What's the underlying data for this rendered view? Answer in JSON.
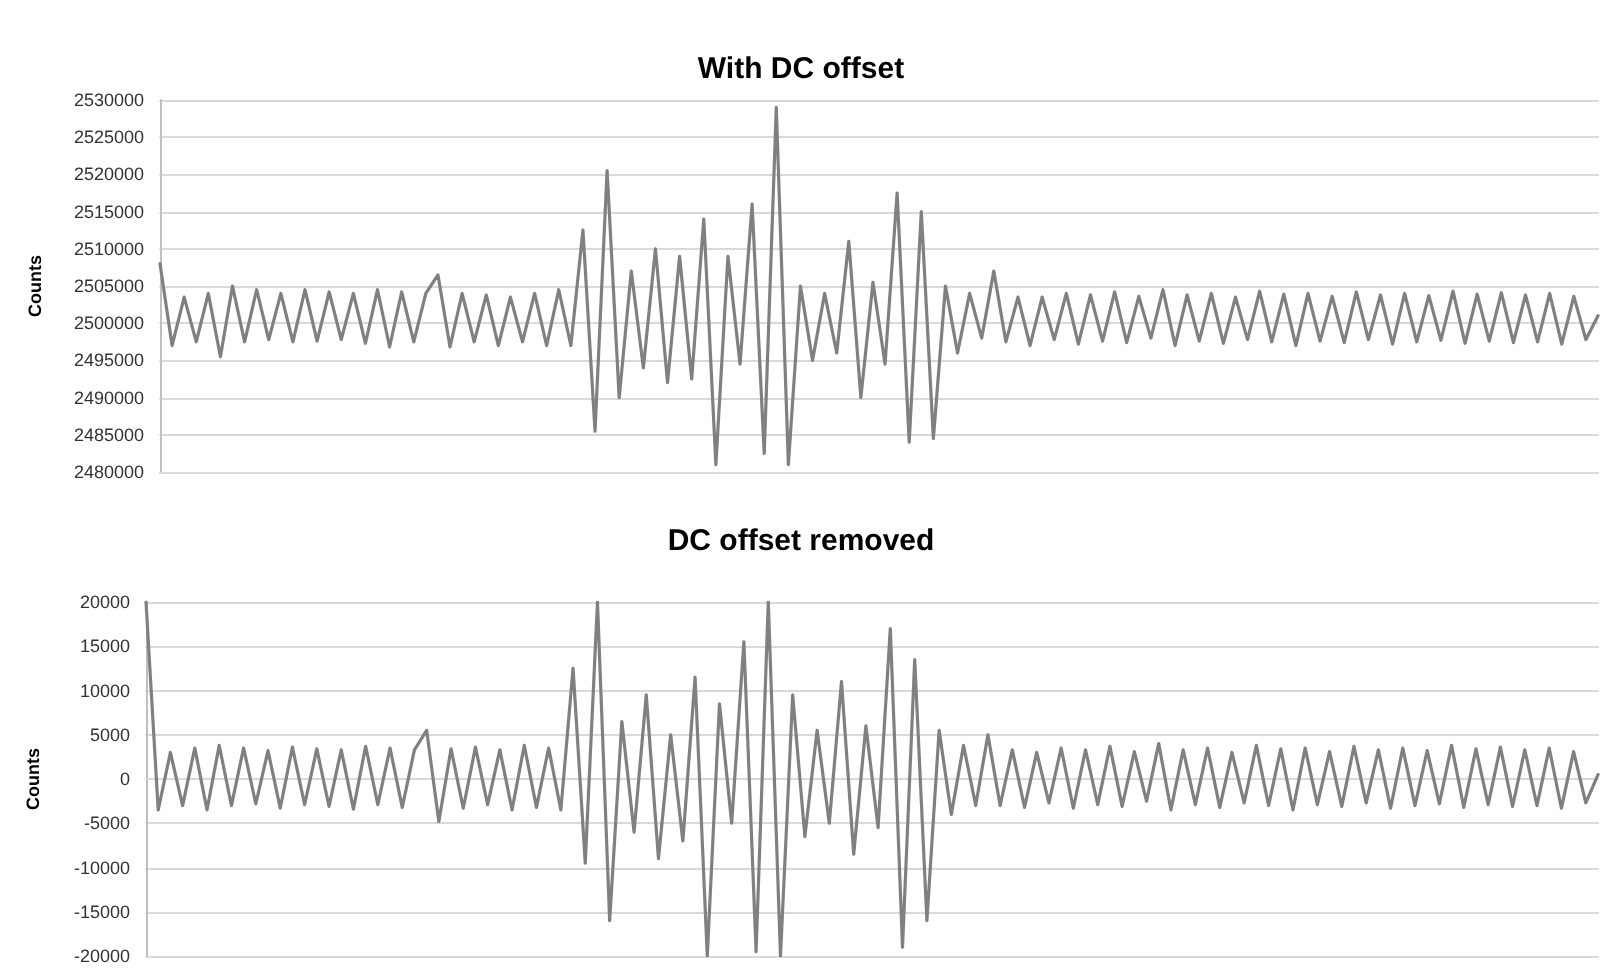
{
  "chart_data": [
    {
      "type": "line",
      "title": "With DC offset",
      "ylabel": "Counts",
      "grid": "y",
      "tick_labels": "y",
      "categories": [
        null,
        null,
        null,
        null,
        null,
        null,
        null,
        null,
        null,
        null,
        null,
        null,
        null,
        null,
        null,
        null,
        null,
        null,
        null,
        null,
        null,
        null,
        null,
        null,
        null,
        null,
        null,
        null,
        null,
        null,
        null,
        null,
        null,
        null,
        null,
        null,
        null,
        null,
        null,
        null,
        null,
        null,
        null,
        null,
        null,
        null,
        null,
        null,
        null,
        null,
        null,
        null,
        null,
        null,
        null,
        null,
        null,
        null,
        null,
        null,
        null,
        null,
        null,
        null,
        null,
        null,
        null,
        null,
        null,
        null,
        null,
        null,
        null,
        null,
        null,
        null,
        null,
        null,
        null,
        null,
        null,
        null,
        null,
        null,
        null,
        null,
        null,
        null,
        null,
        null,
        null,
        null,
        null,
        null,
        null,
        null,
        null,
        null,
        null,
        null,
        null,
        null,
        null,
        null,
        null,
        null,
        null,
        null,
        null,
        null,
        null,
        null,
        null,
        null,
        null,
        null,
        null,
        null,
        null,
        null
      ],
      "ylim": [
        2480000,
        2530000
      ],
      "yticks": [
        2480000,
        2485000,
        2490000,
        2495000,
        2500000,
        2505000,
        2510000,
        2515000,
        2520000,
        2525000,
        2530000
      ],
      "series": [
        {
          "color": "#808080",
          "values": [
            2508000,
            2497000,
            2503500,
            2497500,
            2504000,
            2495500,
            2505000,
            2497500,
            2504500,
            2497800,
            2504000,
            2497500,
            2504500,
            2497600,
            2504200,
            2497800,
            2504000,
            2497300,
            2504500,
            2496800,
            2504200,
            2497500,
            2504000,
            2506500,
            2496800,
            2504000,
            2497500,
            2503800,
            2497000,
            2503500,
            2497500,
            2504000,
            2497000,
            2504500,
            2497000,
            2512500,
            2485500,
            2520500,
            2490000,
            2507000,
            2494000,
            2510000,
            2492000,
            2509000,
            2492500,
            2514000,
            2481000,
            2509000,
            2494500,
            2516000,
            2482500,
            2529000,
            2481000,
            2505000,
            2495000,
            2504000,
            2496000,
            2511000,
            2490000,
            2505500,
            2494500,
            2517500,
            2484000,
            2515000,
            2484500,
            2505000,
            2496000,
            2504000,
            2498000,
            2507000,
            2497500,
            2503500,
            2497000,
            2503500,
            2497800,
            2504000,
            2497200,
            2503800,
            2497600,
            2504200,
            2497400,
            2503600,
            2498000,
            2504500,
            2497000,
            2503800,
            2497600,
            2504000,
            2497300,
            2503500,
            2497800,
            2504300,
            2497500,
            2503900,
            2497000,
            2504000,
            2497600,
            2503600,
            2497400,
            2504200,
            2497800,
            2503800,
            2497200,
            2504000,
            2497500,
            2503700,
            2497700,
            2504300,
            2497300,
            2503900,
            2497600,
            2504100,
            2497400,
            2503800,
            2497500,
            2504000,
            2497200,
            2503600,
            2497800,
            2501000
          ]
        }
      ]
    },
    {
      "type": "line",
      "title": "DC offset removed",
      "ylabel": "Counts",
      "grid": "y",
      "tick_labels": "y",
      "categories": [
        null,
        null,
        null,
        null,
        null,
        null,
        null,
        null,
        null,
        null,
        null,
        null,
        null,
        null,
        null,
        null,
        null,
        null,
        null,
        null,
        null,
        null,
        null,
        null,
        null,
        null,
        null,
        null,
        null,
        null,
        null,
        null,
        null,
        null,
        null,
        null,
        null,
        null,
        null,
        null,
        null,
        null,
        null,
        null,
        null,
        null,
        null,
        null,
        null,
        null,
        null,
        null,
        null,
        null,
        null,
        null,
        null,
        null,
        null,
        null,
        null,
        null,
        null,
        null,
        null,
        null,
        null,
        null,
        null,
        null,
        null,
        null,
        null,
        null,
        null,
        null,
        null,
        null,
        null,
        null,
        null,
        null,
        null,
        null,
        null,
        null,
        null,
        null,
        null,
        null,
        null,
        null,
        null,
        null,
        null,
        null,
        null,
        null,
        null,
        null,
        null,
        null,
        null,
        null,
        null,
        null,
        null,
        null,
        null,
        null,
        null,
        null,
        null,
        null,
        null,
        null,
        null,
        null,
        null,
        null
      ],
      "ylim": [
        -20000,
        20000
      ],
      "yticks": [
        -20000,
        -15000,
        -10000,
        -5000,
        0,
        5000,
        10000,
        15000,
        20000
      ],
      "series": [
        {
          "color": "#808080",
          "values": [
            20000,
            -3500,
            3000,
            -3000,
            3500,
            -3500,
            3800,
            -3000,
            3500,
            -2800,
            3200,
            -3300,
            3600,
            -2900,
            3400,
            -3100,
            3300,
            -3400,
            3700,
            -2900,
            3500,
            -3200,
            3300,
            5500,
            -4800,
            3400,
            -3300,
            3600,
            -2900,
            3300,
            -3500,
            3800,
            -3200,
            3500,
            -3500,
            12500,
            -9500,
            20000,
            -16000,
            6500,
            -6000,
            9500,
            -9000,
            5000,
            -7000,
            11500,
            -20000,
            8500,
            -5000,
            15500,
            -19500,
            20000,
            -20000,
            9500,
            -6500,
            5500,
            -5000,
            11000,
            -8500,
            6000,
            -5500,
            17000,
            -19000,
            13500,
            -16000,
            5500,
            -4000,
            3800,
            -3000,
            5000,
            -3000,
            3300,
            -3200,
            3000,
            -2700,
            3500,
            -3300,
            3300,
            -2900,
            3700,
            -3100,
            3100,
            -2500,
            4000,
            -3500,
            3300,
            -2900,
            3500,
            -3200,
            3000,
            -2700,
            3800,
            -3000,
            3400,
            -3500,
            3500,
            -2900,
            3100,
            -3100,
            3700,
            -2700,
            3300,
            -3300,
            3500,
            -3000,
            3200,
            -2800,
            3800,
            -3200,
            3400,
            -2900,
            3600,
            -3100,
            3300,
            -3000,
            3500,
            -3300,
            3100,
            -2700,
            500
          ]
        }
      ]
    }
  ]
}
